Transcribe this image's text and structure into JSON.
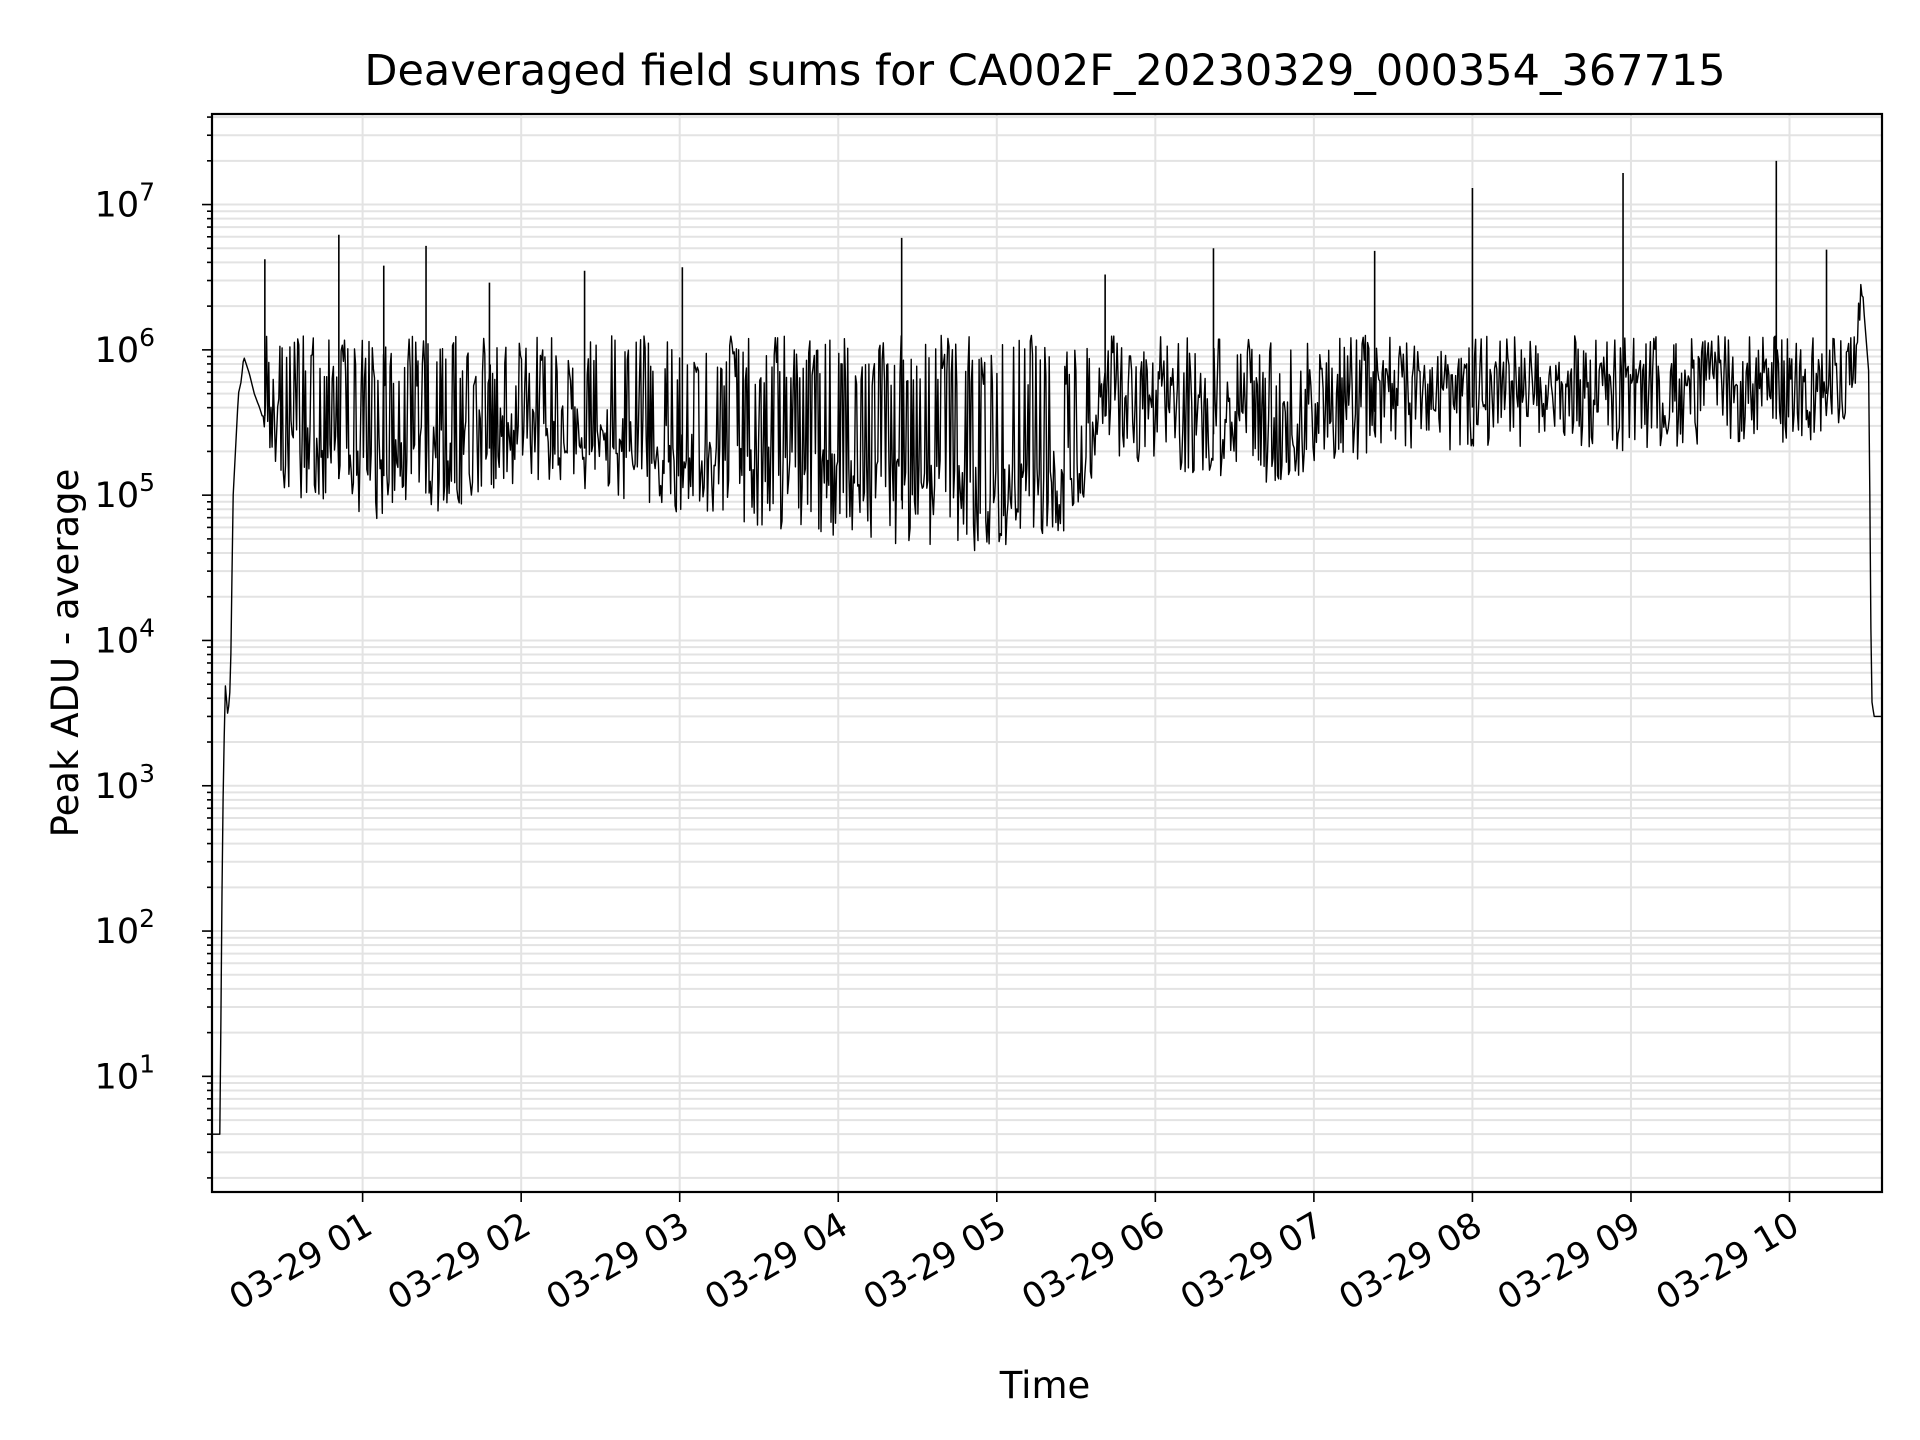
{
  "chart_data": {
    "type": "line",
    "title": "Deaveraged field sums for CA002F_20230329_000354_367715",
    "xlabel": "Time",
    "ylabel": "Peak ADU - average",
    "yscale": "log",
    "ylim": [
      1.6,
      42000000
    ],
    "xlim": [
      "2023-03-29 00:03",
      "2023-03-29 10:35"
    ],
    "grid": true,
    "series_color": "#000000",
    "grid_color": "#e3e3e3",
    "x_ticks": [
      "03-29 01",
      "03-29 02",
      "03-29 03",
      "03-29 04",
      "03-29 05",
      "03-29 06",
      "03-29 07",
      "03-29 08",
      "03-29 09",
      "03-29 10"
    ],
    "y_ticks": [
      {
        "base": "10",
        "exp": "1",
        "value": 10
      },
      {
        "base": "10",
        "exp": "2",
        "value": 100
      },
      {
        "base": "10",
        "exp": "3",
        "value": 1000
      },
      {
        "base": "10",
        "exp": "4",
        "value": 10000
      },
      {
        "base": "10",
        "exp": "5",
        "value": 100000
      },
      {
        "base": "10",
        "exp": "6",
        "value": 1000000
      },
      {
        "base": "10",
        "exp": "7",
        "value": 10000000
      }
    ],
    "series": [
      {
        "x": [
          "2023-03-29 00:03",
          "2023-03-29 00:05",
          "2023-03-29 00:06",
          "2023-03-29 00:07",
          "2023-03-29 00:08",
          "2023-03-29 00:09",
          "2023-03-29 00:10",
          "2023-03-29 00:11",
          "2023-03-29 00:13",
          "2023-03-29 00:14",
          "2023-03-29 00:15",
          "2023-03-29 00:17",
          "2023-03-29 00:19",
          "2023-03-29 00:21",
          "2023-03-29 00:22",
          "2023-03-29 00:25",
          "2023-03-29 00:30",
          "2023-03-29 00:40",
          "2023-03-29 00:50",
          "2023-03-29 01:00",
          "2023-03-29 01:15",
          "2023-03-29 01:30",
          "2023-03-29 01:45",
          "2023-03-29 02:00",
          "2023-03-29 02:30",
          "2023-03-29 03:00",
          "2023-03-29 03:30",
          "2023-03-29 04:00",
          "2023-03-29 04:30",
          "2023-03-29 05:00",
          "2023-03-29 05:30",
          "2023-03-29 05:40",
          "2023-03-29 06:00",
          "2023-03-29 06:30",
          "2023-03-29 06:45",
          "2023-03-29 07:00",
          "2023-03-29 07:30",
          "2023-03-29 08:00",
          "2023-03-29 08:30",
          "2023-03-29 09:00",
          "2023-03-29 09:30",
          "2023-03-29 10:00",
          "2023-03-29 10:15",
          "2023-03-29 10:25",
          "2023-03-29 10:28",
          "2023-03-29 10:30",
          "2023-03-29 10:31",
          "2023-03-29 10:32",
          "2023-03-29 10:35"
        ],
        "y": [
          4,
          4,
          4,
          500,
          5000,
          3000,
          5000,
          100000,
          500000,
          600000,
          900000,
          700000,
          500000,
          400000,
          350000,
          350000,
          200000,
          150000,
          130000,
          120000,
          150000,
          150000,
          200000,
          250000,
          200000,
          150000,
          120000,
          100000,
          90000,
          80000,
          120000,
          350000,
          300000,
          250000,
          200000,
          300000,
          400000,
          400000,
          400000,
          400000,
          450000,
          450000,
          500000,
          800000,
          2000000,
          700000,
          4000,
          3000,
          3000
        ]
      }
    ],
    "spikes": [
      {
        "x": "2023-03-29 00:23",
        "y": 4200000
      },
      {
        "x": "2023-03-29 00:51",
        "y": 6200000
      },
      {
        "x": "2023-03-29 01:08",
        "y": 3800000
      },
      {
        "x": "2023-03-29 01:24",
        "y": 5200000
      },
      {
        "x": "2023-03-29 01:48",
        "y": 2900000
      },
      {
        "x": "2023-03-29 02:24",
        "y": 3500000
      },
      {
        "x": "2023-03-29 03:01",
        "y": 3700000
      },
      {
        "x": "2023-03-29 04:24",
        "y": 5900000
      },
      {
        "x": "2023-03-29 05:41",
        "y": 3300000
      },
      {
        "x": "2023-03-29 06:22",
        "y": 5000000
      },
      {
        "x": "2023-03-29 07:23",
        "y": 4800000
      },
      {
        "x": "2023-03-29 08:00",
        "y": 13000000
      },
      {
        "x": "2023-03-29 08:57",
        "y": 16500000
      },
      {
        "x": "2023-03-29 09:55",
        "y": 20000000
      },
      {
        "x": "2023-03-29 10:14",
        "y": 4900000
      }
    ]
  }
}
